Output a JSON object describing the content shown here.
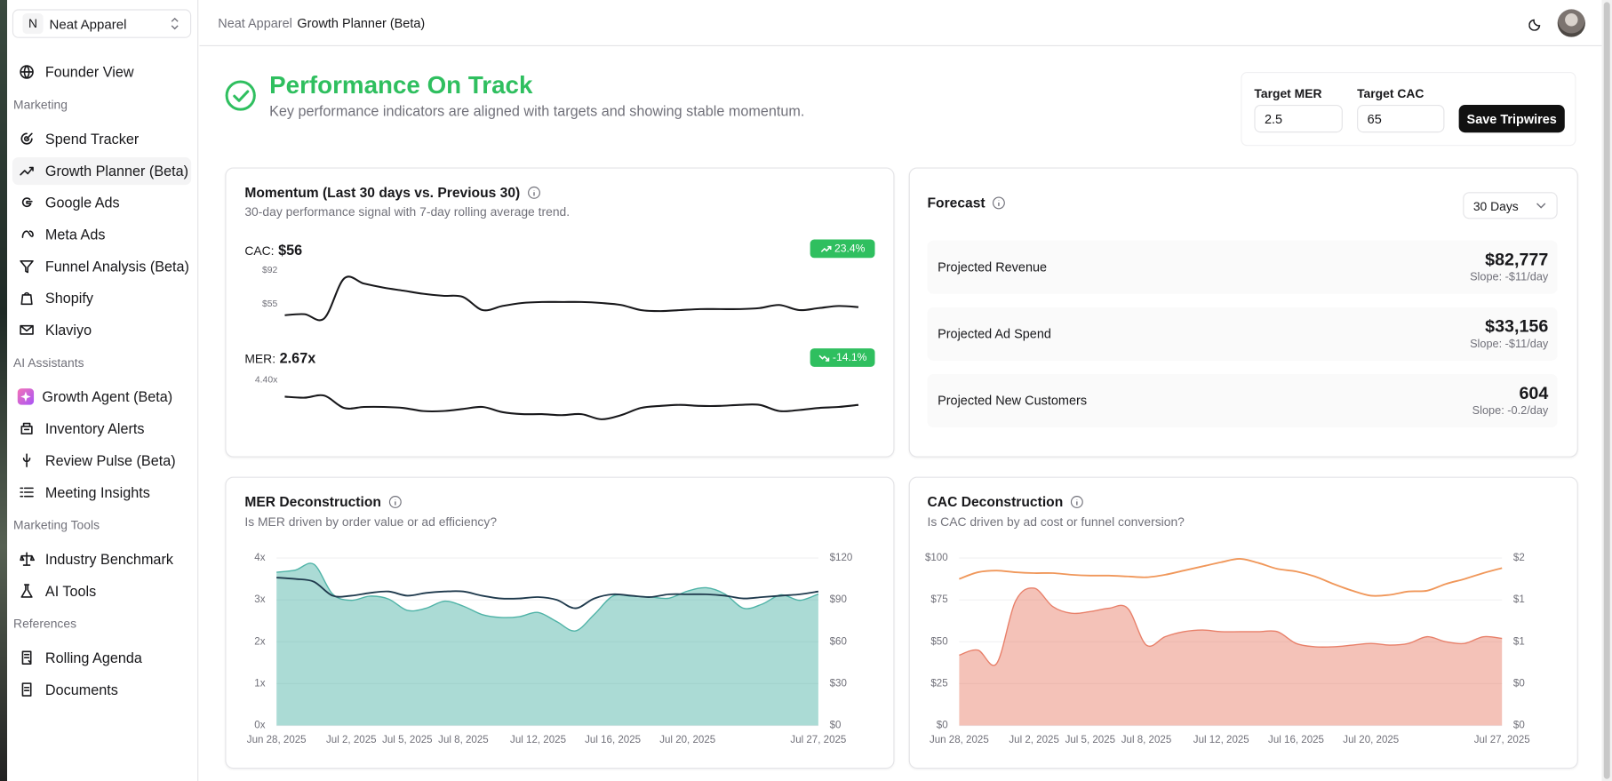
{
  "sidebar": {
    "workspace_initial": "N",
    "workspace": "Neat Apparel",
    "nav": [
      {
        "items": [
          "Founder View"
        ]
      },
      {
        "title": "Marketing",
        "items": [
          "Spend Tracker",
          "Growth Planner (Beta)",
          "Google Ads",
          "Meta Ads",
          "Funnel Analysis (Beta)",
          "Shopify",
          "Klaviyo"
        ]
      },
      {
        "title": "AI Assistants",
        "items": [
          "Growth Agent (Beta)",
          "Inventory Alerts",
          "Review Pulse (Beta)",
          "Meeting Insights"
        ]
      },
      {
        "title": "Marketing Tools",
        "items": [
          "Industry Benchmark",
          "AI Tools"
        ]
      },
      {
        "title": "References",
        "items": [
          "Rolling Agenda",
          "Documents"
        ]
      }
    ]
  },
  "header": {
    "breadcrumbs": [
      "Neat Apparel",
      "Growth Planner (Beta)"
    ]
  },
  "status": {
    "title": "Performance On Track",
    "subtitle": "Key performance indicators are aligned with targets and showing stable momentum."
  },
  "targets": {
    "mer_label": "Target MER",
    "mer_value": "2.5",
    "cac_label": "Target CAC",
    "cac_value": "65",
    "button": "Save Tripwires"
  },
  "momentum": {
    "title": "Momentum (Last 30 days vs. Previous 30)",
    "subtitle": "30-day performance signal with 7-day rolling average trend."
  },
  "forecast": {
    "title": "Forecast",
    "period": "30 Days",
    "items": [
      {
        "label": "Projected Revenue",
        "value": "$82,777",
        "slope": "Slope: -$11/day"
      },
      {
        "label": "Projected Ad Spend",
        "value": "$33,156",
        "slope": "Slope: -$11/day"
      },
      {
        "label": "Projected New Customers",
        "value": "604",
        "slope": "Slope: -0.2/day"
      }
    ]
  },
  "chart_data": [
    {
      "type": "line",
      "label": "CAC:",
      "metric": "$56",
      "change": "23.4%",
      "ylim": [
        39,
        92
      ],
      "yticks": [
        {
          "value": 92,
          "label": "$92"
        },
        {
          "value": 55,
          "label": "$55"
        }
      ],
      "grid": false,
      "series": [
        {
          "color": "#18181b",
          "values": [
            42.7,
            43.8,
            39.3,
            83,
            77.4,
            72.9,
            69.6,
            66.2,
            64,
            62.8,
            48.3,
            52.8,
            56.1,
            57.2,
            57.2,
            57.2,
            56.1,
            53.9,
            48.3,
            47.2,
            48.3,
            49.4,
            49.4,
            49.4,
            50.5,
            53.9,
            48.3,
            50.5,
            52.8,
            51.6
          ]
        }
      ]
    },
    {
      "type": "line",
      "label": "MER:",
      "metric": "2.67x",
      "change": "-14.1%",
      "ylim": [
        2,
        4.4
      ],
      "yticks": [
        {
          "value": 4.4,
          "label": "4.40x"
        }
      ],
      "grid": false,
      "series": [
        {
          "color": "#18181b",
          "values": [
            3.44,
            3.38,
            3.5,
            2.78,
            2.84,
            2.84,
            2.78,
            2.6,
            2.6,
            2.72,
            2.84,
            2.54,
            2.42,
            2.42,
            2.36,
            2.42,
            2.12,
            2.36,
            2.78,
            2.9,
            2.96,
            2.9,
            2.9,
            2.96,
            2.96,
            2.6,
            2.66,
            2.78,
            2.84,
            2.96
          ]
        }
      ]
    },
    {
      "type": "area",
      "title": "MER Deconstruction",
      "subtitle": "Is MER driven by order value or ad efficiency?",
      "categories": [
        "Jun 28, 2025",
        null,
        null,
        null,
        "Jul 2, 2025",
        null,
        null,
        "Jul 5, 2025",
        null,
        null,
        "Jul 8, 2025",
        null,
        null,
        null,
        "Jul 12, 2025",
        null,
        null,
        null,
        "Jul 16, 2025",
        null,
        null,
        null,
        "Jul 20, 2025",
        null,
        null,
        null,
        null,
        null,
        null,
        "Jul 27, 2025"
      ],
      "ylim": [
        0,
        4
      ],
      "yticks": [
        {
          "value": 0,
          "label": "0x"
        },
        {
          "value": 1,
          "label": "1x"
        },
        {
          "value": 2,
          "label": "2x"
        },
        {
          "value": 3,
          "label": "3x"
        },
        {
          "value": 4,
          "label": "4x"
        }
      ],
      "y2lim": [
        0,
        120
      ],
      "y2ticks": [
        {
          "value": 0,
          "label": "$0"
        },
        {
          "value": 30,
          "label": "$30"
        },
        {
          "value": 60,
          "label": "$60"
        },
        {
          "value": 90,
          "label": "$90"
        },
        {
          "value": 120,
          "label": "$120"
        }
      ],
      "grid": true,
      "series": [
        {
          "type": "area",
          "color": "#4fb3a7",
          "values": [
            3.66,
            3.71,
            3.85,
            3.14,
            2.99,
            3.09,
            3.02,
            2.75,
            2.8,
            2.97,
            2.85,
            2.65,
            2.58,
            2.6,
            2.7,
            2.48,
            2.26,
            2.65,
            3.09,
            3.09,
            3.07,
            3.04,
            3.21,
            3.29,
            3.14,
            2.8,
            2.9,
            3.12,
            2.99,
            3.14
          ]
        },
        {
          "type": "line",
          "axis": "y2",
          "color": "#1f3a4d",
          "values": [
            106,
            105,
            103,
            93,
            93,
            95,
            96,
            93,
            95,
            96,
            96,
            93,
            91,
            91,
            92,
            90,
            84,
            91,
            94,
            93,
            92,
            94,
            94,
            94,
            93,
            91,
            92,
            93,
            94,
            96
          ]
        }
      ]
    },
    {
      "type": "area",
      "title": "CAC Deconstruction",
      "subtitle": "Is CAC driven by ad cost or funnel conversion?",
      "categories": [
        "Jun 28, 2025",
        null,
        null,
        null,
        "Jul 2, 2025",
        null,
        null,
        "Jul 5, 2025",
        null,
        null,
        "Jul 8, 2025",
        null,
        null,
        null,
        "Jul 12, 2025",
        null,
        null,
        null,
        "Jul 16, 2025",
        null,
        null,
        null,
        "Jul 20, 2025",
        null,
        null,
        null,
        null,
        null,
        null,
        "Jul 27, 2025"
      ],
      "ylim": [
        0,
        100
      ],
      "yticks": [
        {
          "value": 0,
          "label": "$0"
        },
        {
          "value": 25,
          "label": "$25"
        },
        {
          "value": 50,
          "label": "$50"
        },
        {
          "value": 75,
          "label": "$75"
        },
        {
          "value": 100,
          "label": "$100"
        }
      ],
      "y2lim": [
        0,
        2
      ],
      "y2ticks": [
        {
          "value": 0,
          "label": "$0"
        },
        {
          "value": 0.5,
          "label": "$0"
        },
        {
          "value": 1,
          "label": "$1"
        },
        {
          "value": 1.5,
          "label": "$1"
        },
        {
          "value": 2,
          "label": "$2"
        }
      ],
      "grid": true,
      "series": [
        {
          "type": "area",
          "color": "#e8806a",
          "values": [
            42,
            45,
            37,
            74,
            82,
            71,
            67,
            68,
            70,
            70,
            48,
            53,
            56,
            57,
            56,
            56,
            56,
            56,
            49,
            47,
            47,
            48,
            49,
            48,
            49,
            53,
            50,
            49,
            53,
            52
          ]
        },
        {
          "type": "line",
          "axis": "y2",
          "color": "#f0975a",
          "values": [
            1.75,
            1.83,
            1.85,
            1.83,
            1.82,
            1.82,
            1.8,
            1.79,
            1.79,
            1.78,
            1.77,
            1.8,
            1.85,
            1.9,
            1.95,
            1.99,
            1.94,
            1.87,
            1.84,
            1.78,
            1.69,
            1.61,
            1.55,
            1.56,
            1.6,
            1.61,
            1.69,
            1.75,
            1.82,
            1.88
          ]
        }
      ]
    }
  ]
}
